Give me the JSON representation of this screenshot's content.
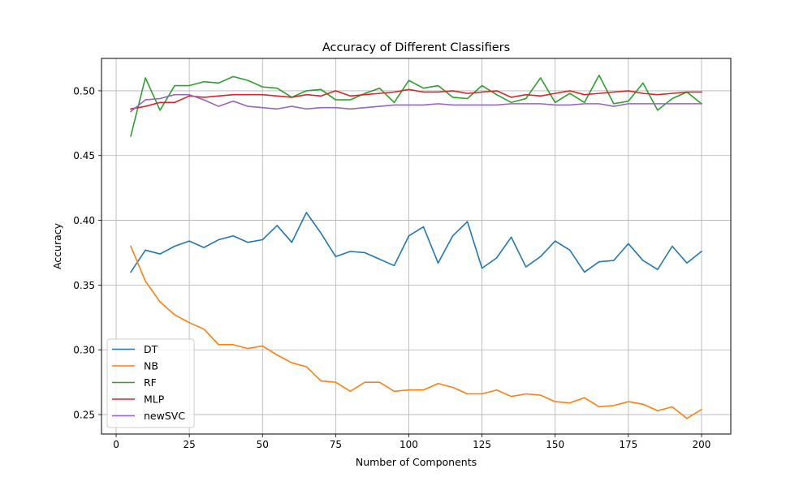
{
  "chart_data": {
    "type": "line",
    "title": "Accuracy of Different Classifiers",
    "xlabel": "Number of Components",
    "ylabel": "Accuracy",
    "xlim": [
      -5,
      210
    ],
    "ylim": [
      0.235,
      0.525
    ],
    "xticks": [
      0,
      25,
      50,
      75,
      100,
      125,
      150,
      175,
      200
    ],
    "yticks": [
      0.25,
      0.3,
      0.35,
      0.4,
      0.45,
      0.5
    ],
    "xtick_labels": [
      "0",
      "25",
      "50",
      "75",
      "100",
      "125",
      "150",
      "175",
      "200"
    ],
    "ytick_labels": [
      "0.25",
      "0.30",
      "0.35",
      "0.40",
      "0.45",
      "0.50"
    ],
    "grid": true,
    "legend_position": "lower-left",
    "x": [
      5,
      10,
      15,
      20,
      25,
      30,
      35,
      40,
      45,
      50,
      55,
      60,
      65,
      70,
      75,
      80,
      85,
      90,
      95,
      100,
      105,
      110,
      115,
      120,
      125,
      130,
      135,
      140,
      145,
      150,
      155,
      160,
      165,
      170,
      175,
      180,
      185,
      190,
      195,
      200
    ],
    "series": [
      {
        "name": "DT",
        "color": "#1f77b4",
        "values": [
          0.36,
          0.377,
          0.374,
          0.38,
          0.384,
          0.379,
          0.385,
          0.388,
          0.383,
          0.385,
          0.396,
          0.383,
          0.406,
          0.39,
          0.372,
          0.376,
          0.375,
          0.37,
          0.365,
          0.388,
          0.395,
          0.367,
          0.388,
          0.399,
          0.363,
          0.371,
          0.387,
          0.364,
          0.372,
          0.384,
          0.377,
          0.36,
          0.368,
          0.369,
          0.382,
          0.369,
          0.362,
          0.38,
          0.367,
          0.376
        ]
      },
      {
        "name": "NB",
        "color": "#ff7f0e",
        "values": [
          0.38,
          0.353,
          0.337,
          0.327,
          0.321,
          0.316,
          0.304,
          0.304,
          0.301,
          0.303,
          0.296,
          0.29,
          0.287,
          0.276,
          0.275,
          0.268,
          0.275,
          0.275,
          0.268,
          0.269,
          0.269,
          0.274,
          0.271,
          0.266,
          0.266,
          0.269,
          0.264,
          0.266,
          0.265,
          0.26,
          0.259,
          0.263,
          0.256,
          0.257,
          0.26,
          0.258,
          0.253,
          0.256,
          0.247,
          0.254
        ]
      },
      {
        "name": "RF",
        "color": "#2ca02c",
        "values": [
          0.465,
          0.51,
          0.485,
          0.504,
          0.504,
          0.507,
          0.506,
          0.511,
          0.508,
          0.503,
          0.502,
          0.495,
          0.5,
          0.501,
          0.493,
          0.493,
          0.498,
          0.502,
          0.491,
          0.508,
          0.502,
          0.504,
          0.495,
          0.494,
          0.504,
          0.497,
          0.491,
          0.494,
          0.51,
          0.491,
          0.498,
          0.491,
          0.512,
          0.49,
          0.492,
          0.506,
          0.485,
          0.494,
          0.499,
          0.49
        ]
      },
      {
        "name": "MLP",
        "color": "#d62728",
        "values": [
          0.486,
          0.488,
          0.491,
          0.491,
          0.496,
          0.495,
          0.496,
          0.497,
          0.497,
          0.497,
          0.496,
          0.495,
          0.497,
          0.496,
          0.5,
          0.496,
          0.497,
          0.498,
          0.499,
          0.501,
          0.499,
          0.499,
          0.5,
          0.498,
          0.499,
          0.5,
          0.495,
          0.497,
          0.496,
          0.498,
          0.5,
          0.497,
          0.498,
          0.499,
          0.5,
          0.498,
          0.497,
          0.498,
          0.499,
          0.499
        ]
      },
      {
        "name": "newSVC",
        "color": "#9467bd",
        "values": [
          0.484,
          0.493,
          0.494,
          0.497,
          0.497,
          0.493,
          0.488,
          0.492,
          0.488,
          0.487,
          0.486,
          0.488,
          0.486,
          0.487,
          0.487,
          0.486,
          0.487,
          0.488,
          0.489,
          0.489,
          0.489,
          0.49,
          0.489,
          0.489,
          0.489,
          0.489,
          0.49,
          0.49,
          0.49,
          0.489,
          0.489,
          0.49,
          0.49,
          0.488,
          0.49,
          0.49,
          0.49,
          0.49,
          0.49,
          0.49
        ]
      }
    ]
  }
}
